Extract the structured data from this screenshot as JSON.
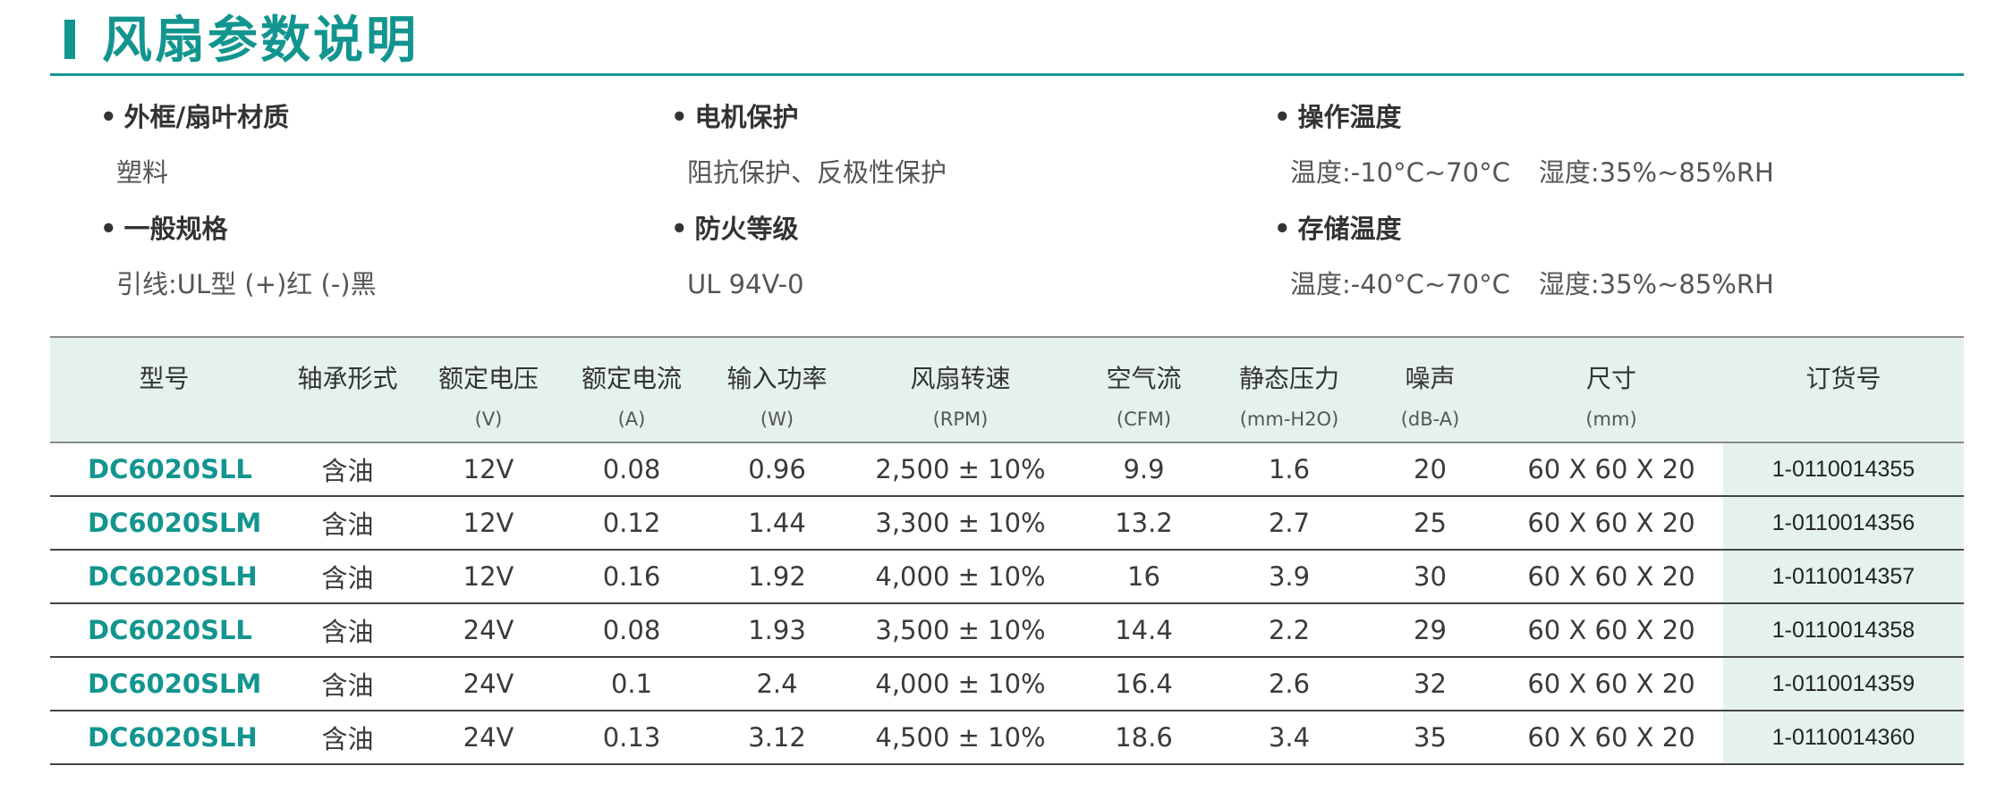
{
  "title": "风扇参数说明",
  "specs": {
    "frame_material": {
      "heading": "外框/扇叶材质",
      "value": "塑料"
    },
    "general": {
      "heading": "一般规格",
      "value": "引线:UL型 (+)红 (-)黑"
    },
    "motor_protection": {
      "heading": "电机保护",
      "value": "阻抗保护、反极性保护"
    },
    "fire_rating": {
      "heading": "防火等级",
      "value": "UL 94V-0"
    },
    "operating_temp": {
      "heading": "操作温度",
      "temp": "温度:-10°C~70°C",
      "humidity": "湿度:35%~85%RH"
    },
    "storage_temp": {
      "heading": "存储温度",
      "temp": "温度:-40°C~70°C",
      "humidity": "湿度:35%~85%RH"
    }
  },
  "bullet": "•",
  "table": {
    "headers": [
      {
        "label": "型号",
        "unit": ""
      },
      {
        "label": "轴承形式",
        "unit": ""
      },
      {
        "label": "额定电压",
        "unit": "(V)"
      },
      {
        "label": "额定电流",
        "unit": "(A)"
      },
      {
        "label": "输入功率",
        "unit": "(W)"
      },
      {
        "label": "风扇转速",
        "unit": "(RPM)"
      },
      {
        "label": "空气流",
        "unit": "(CFM)"
      },
      {
        "label": "静态压力",
        "unit": "(mm-H2O)"
      },
      {
        "label": "噪声",
        "unit": "(dB-A)"
      },
      {
        "label": "尺寸",
        "unit": "(mm)"
      },
      {
        "label": "订货号",
        "unit": ""
      }
    ],
    "rows": [
      [
        "DC6020SLL",
        "含油",
        "12V",
        "0.08",
        "0.96",
        "2,500 ± 10%",
        "9.9",
        "1.6",
        "20",
        "60 X 60 X 20",
        "1-0110014355"
      ],
      [
        "DC6020SLM",
        "含油",
        "12V",
        "0.12",
        "1.44",
        "3,300 ± 10%",
        "13.2",
        "2.7",
        "25",
        "60 X 60 X 20",
        "1-0110014356"
      ],
      [
        "DC6020SLH",
        "含油",
        "12V",
        "0.16",
        "1.92",
        "4,000 ± 10%",
        "16",
        "3.9",
        "30",
        "60 X 60 X 20",
        "1-0110014357"
      ],
      [
        "DC6020SLL",
        "含油",
        "24V",
        "0.08",
        "1.93",
        "3,500 ± 10%",
        "14.4",
        "2.2",
        "29",
        "60 X 60 X 20",
        "1-0110014358"
      ],
      [
        "DC6020SLM",
        "含油",
        "24V",
        "0.1",
        "2.4",
        "4,000 ± 10%",
        "16.4",
        "2.6",
        "32",
        "60 X 60 X 20",
        "1-0110014359"
      ],
      [
        "DC6020SLH",
        "含油",
        "24V",
        "0.13",
        "3.12",
        "4,500 ± 10%",
        "18.6",
        "3.4",
        "35",
        "60 X 60 X 20",
        "1-0110014360"
      ]
    ]
  },
  "colors": {
    "accent": "#13958f",
    "header_bg": "#e4f1ef",
    "text": "#3a3a3a"
  }
}
